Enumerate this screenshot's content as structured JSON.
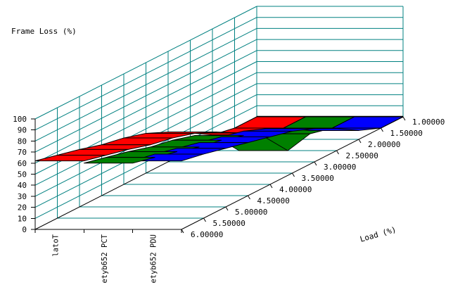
{
  "chart_data": {
    "type": "surface3d",
    "value_axis_title": "Frame Loss (%)",
    "depth_axis_title": "Load (%)",
    "legend": "none",
    "background": "#ffffff",
    "gridline_color": "#008080",
    "axis_color": "#000000",
    "value_axis": {
      "min": 0,
      "max": 100,
      "step": 10,
      "tick_labels": [
        "0",
        "10",
        "20",
        "30",
        "40",
        "50",
        "60",
        "70",
        "80",
        "90",
        "100"
      ]
    },
    "depth_axis": {
      "title": "Load (%)",
      "tick_labels_near_to_far": [
        "6.00000",
        "5.50000",
        "5.00000",
        "4.50000",
        "4.00000",
        "3.50000",
        "3.00000",
        "2.50000",
        "2.00000",
        "1.50000",
        "1.00000"
      ],
      "loads_near_to_far": [
        6.0,
        5.5,
        5.0,
        4.5,
        4.0,
        3.5,
        3.0,
        2.5,
        2.0,
        1.5,
        1.0
      ]
    },
    "categories": [
      "Total",
      "TCP 256byte",
      "UDP 256byte"
    ],
    "series": [
      {
        "name": "Total",
        "color": "#ff0000",
        "values_near_to_far": [
          62,
          57,
          52,
          46,
          42,
          36,
          27,
          16,
          4,
          0,
          0
        ]
      },
      {
        "name": "TCP 256byte",
        "color": "#008000",
        "values_near_to_far": [
          60,
          55,
          50,
          44,
          40,
          34,
          22,
          0,
          5,
          0,
          0
        ]
      },
      {
        "name": "UDP 256byte",
        "color": "#0000ff",
        "values_near_to_far": [
          62,
          58,
          53,
          48,
          43,
          38,
          30,
          20,
          8,
          0,
          0
        ]
      }
    ]
  }
}
